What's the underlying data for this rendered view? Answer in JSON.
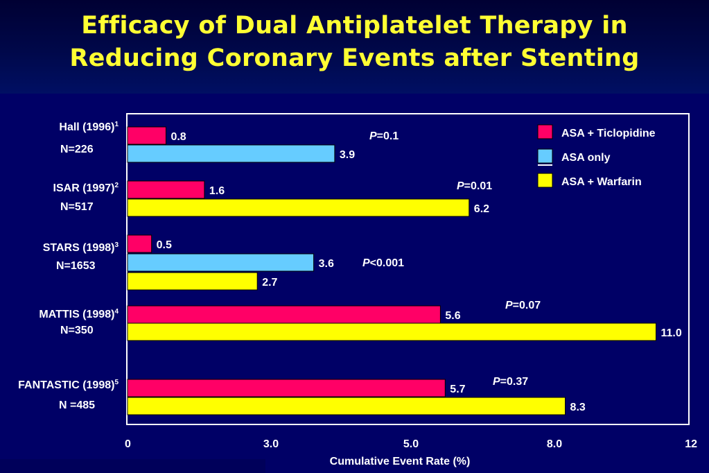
{
  "title": [
    "Efficacy of Dual Antiplatelet Therapy in",
    "Reducing Coronary Events after Stenting"
  ],
  "colors": {
    "asa_ticlopidine": "#ff0066",
    "asa_only": "#66ccff",
    "asa_warfarin": "#ffff00",
    "title_text": "#ffff33",
    "axis": "#ffffff"
  },
  "chart_data": {
    "type": "bar",
    "orientation": "horizontal",
    "title": "Efficacy of Dual Antiplatelet Therapy in Reducing Coronary Events after Stenting",
    "xlabel": "Cumulative Event Rate (%)",
    "ylabel": "",
    "x_ticks": [
      "0",
      "3.0",
      "5.0",
      "8.0",
      "12"
    ],
    "xlim": [
      0,
      12
    ],
    "grid": false,
    "legend_position": "top-right",
    "legend": [
      {
        "key": "ticlopidine",
        "label": "ASA + Ticlopidine",
        "color": "#ff0066"
      },
      {
        "key": "asa_only",
        "label": "ASA only",
        "color": "#66ccff"
      },
      {
        "key": "warfarin",
        "label": "ASA + Warfarin",
        "color": "#ffff00"
      }
    ],
    "studies": [
      {
        "name": "Hall (1996)",
        "sup": "1",
        "n": "N=226",
        "p": "=0.1",
        "bars": [
          {
            "series": "ticlopidine",
            "value": 0.8,
            "label": "0.8"
          },
          {
            "series": "asa_only",
            "value": 3.9,
            "label": "3.9"
          }
        ]
      },
      {
        "name": "ISAR (1997)",
        "sup": "2",
        "n": "N=517",
        "p": "=0.01",
        "bars": [
          {
            "series": "ticlopidine",
            "value": 1.6,
            "label": "1.6"
          },
          {
            "series": "warfarin",
            "value": 6.2,
            "label": "6.2"
          }
        ]
      },
      {
        "name": "STARS (1998)",
        "sup": "3",
        "n": "N=1653",
        "p": "<0.001",
        "bars": [
          {
            "series": "ticlopidine",
            "value": 0.5,
            "label": "0.5"
          },
          {
            "series": "asa_only",
            "value": 3.6,
            "label": "3.6"
          },
          {
            "series": "warfarin",
            "value": 2.7,
            "label": "2.7"
          }
        ]
      },
      {
        "name": "MATTIS (1998)",
        "sup": "4",
        "n": "N=350",
        "p": "=0.07",
        "bars": [
          {
            "series": "ticlopidine",
            "value": 5.6,
            "label": "5.6"
          },
          {
            "series": "warfarin",
            "value": 11.0,
            "label": "11.0"
          }
        ]
      },
      {
        "name": "FANTASTIC (1998)",
        "sup": "5",
        "n": "N =485",
        "p": "=0.37",
        "bars": [
          {
            "series": "ticlopidine",
            "value": 5.7,
            "label": "5.7"
          },
          {
            "series": "warfarin",
            "value": 8.3,
            "label": "8.3"
          }
        ]
      }
    ]
  }
}
